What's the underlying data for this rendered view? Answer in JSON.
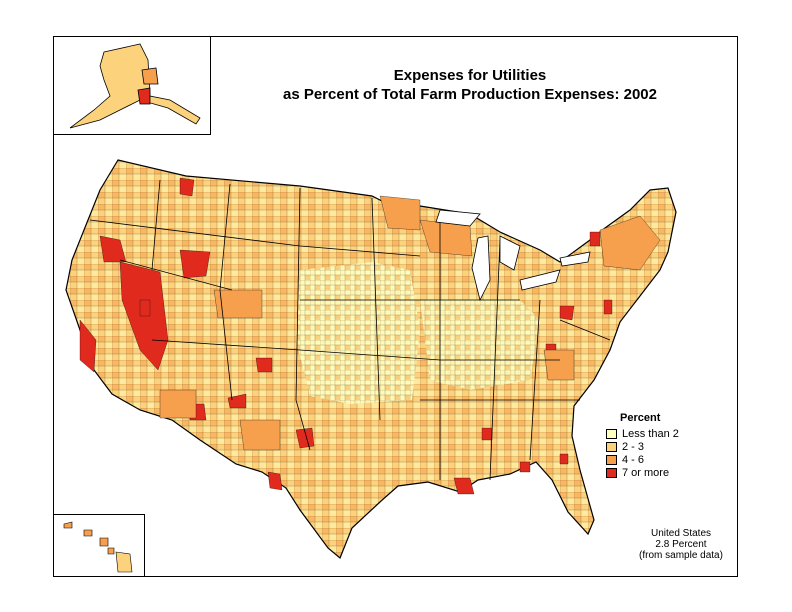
{
  "title": {
    "line1": "Expenses for Utilities",
    "line2": "as Percent of Total Farm Production Expenses:  2002"
  },
  "legend": {
    "title": "Percent",
    "items": [
      {
        "label": "Less than 2",
        "color": "#FFFFC0"
      },
      {
        "label": "2 - 3",
        "color": "#FCD27C"
      },
      {
        "label": "4 - 6",
        "color": "#F6A04E"
      },
      {
        "label": "7 or more",
        "color": "#E12A1E"
      }
    ]
  },
  "footnote": {
    "line1": "United States",
    "line2": "2.8 Percent",
    "line3": "(from sample data)"
  },
  "colors": {
    "low": "#FFFFC0",
    "mid": "#FCD27C",
    "high": "#F6A04E",
    "max": "#E12A1E",
    "border": "#000000"
  }
}
